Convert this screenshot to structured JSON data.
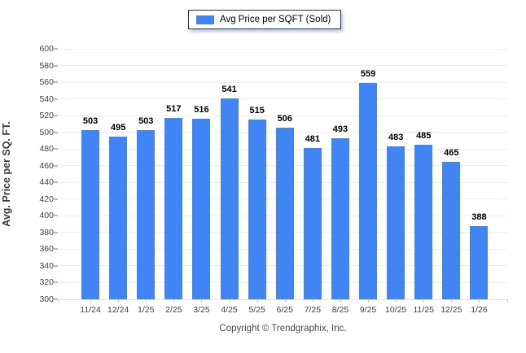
{
  "legend": {
    "label": "Avg Price per SQFT (Sold)",
    "swatch_icon": "legend-color-swatch"
  },
  "footer": {
    "copyright": "Copyright © Trendgraphix, Inc."
  },
  "colors": {
    "bar": "#4184f3",
    "gridline": "#ededed",
    "axis_line": "#e0e0e0",
    "tick": "#cfcfcf",
    "y_tick_accent": "#9cc3f7"
  },
  "chart_data": {
    "type": "bar",
    "title": "",
    "xlabel": "",
    "ylabel": "Avg. Price per SQ. FT.",
    "categories": [
      "11/24",
      "12/24",
      "1/25",
      "2/25",
      "3/25",
      "4/25",
      "5/25",
      "6/25",
      "7/25",
      "8/25",
      "9/25",
      "10/25",
      "11/25",
      "12/25",
      "1/26"
    ],
    "values": [
      503,
      495,
      503,
      517,
      516,
      541,
      515,
      506,
      481,
      493,
      559,
      483,
      485,
      465,
      388
    ],
    "series": [
      {
        "name": "Avg Price per SQFT (Sold)",
        "values": [
          503,
          495,
          503,
          517,
          516,
          541,
          515,
          506,
          481,
          493,
          559,
          483,
          485,
          465,
          388
        ]
      }
    ],
    "ylim": [
      300,
      600
    ],
    "ytick_step": 20,
    "grid": true,
    "data_labels": true,
    "legend_position": "top-center"
  }
}
